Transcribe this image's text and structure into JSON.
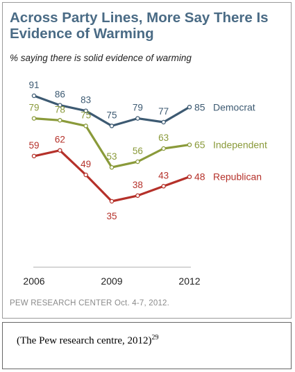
{
  "chart_data": {
    "type": "line",
    "title": "Across Party Lines, More Say There Is Evidence of Warming",
    "subtitle": "% saying there is solid evidence of warming",
    "x": [
      2006,
      2007,
      2008,
      2009,
      2010,
      2011,
      2012
    ],
    "x_tick_labels": [
      "2006",
      "2009",
      "2012"
    ],
    "ylim": [
      30,
      95
    ],
    "grid": false,
    "series": [
      {
        "name": "Democrat",
        "color": "#3d5a72",
        "values": [
          91,
          86,
          83,
          75,
          79,
          77,
          85
        ]
      },
      {
        "name": "Independent",
        "color": "#8a9a3a",
        "values": [
          79,
          78,
          75,
          53,
          56,
          63,
          65
        ]
      },
      {
        "name": "Republican",
        "color": "#b5312a",
        "values": [
          59,
          62,
          49,
          35,
          38,
          43,
          48
        ]
      }
    ]
  },
  "source": "PEW RESEARCH CENTER Oct. 4-7, 2012.",
  "caption": {
    "text": "(The Pew research centre, 2012)",
    "superscript": "29"
  }
}
